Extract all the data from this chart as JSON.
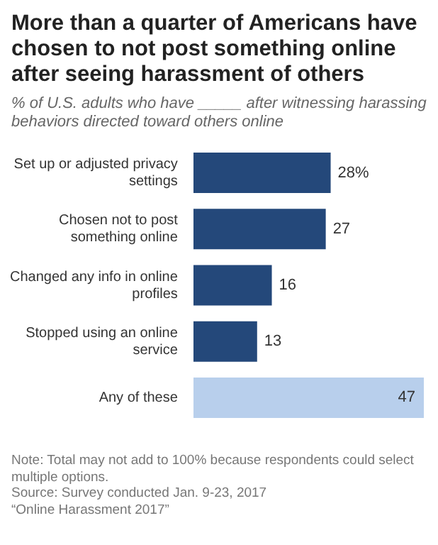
{
  "chart_data": {
    "type": "bar",
    "orientation": "horizontal",
    "title": "More than a quarter of Americans have chosen to not post something online after seeing harassment of others",
    "subtitle": "% of U.S. adults who have _____ after witnessing harassing behaviors directed toward others online",
    "categories": [
      "Set up or adjusted privacy settings",
      "Chosen not to post something online",
      "Changed any info in online profiles",
      "Stopped using an online service",
      "Any of these"
    ],
    "values": [
      28,
      27,
      16,
      13,
      47
    ],
    "colors": [
      "#24487a",
      "#24487a",
      "#24487a",
      "#24487a",
      "#b8cfec"
    ],
    "value_labels": [
      "28%",
      "27",
      "16",
      "13",
      "47"
    ],
    "legend": false,
    "tick_labels": "y",
    "annotations": [
      "Note: Total may not add to 100% because respondents could select multiple options.",
      "Source: Survey conducted Jan. 9-23, 2017",
      "“Online Harassment 2017”"
    ]
  }
}
